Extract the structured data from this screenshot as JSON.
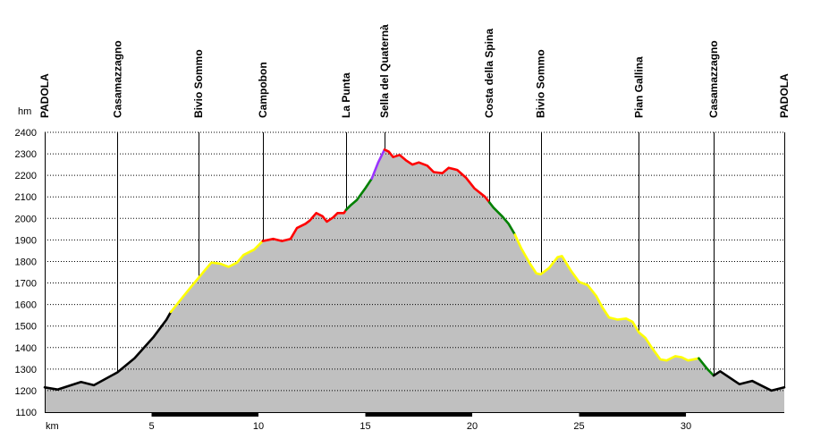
{
  "chart_data": {
    "type": "area",
    "xlabel": "km",
    "ylabel": "hm",
    "xlim": [
      0,
      34.6
    ],
    "ylim": [
      1100,
      2400
    ],
    "x_ticks": [
      5,
      10,
      15,
      20,
      25,
      30
    ],
    "y_ticks": [
      1100,
      1200,
      1300,
      1400,
      1500,
      1600,
      1700,
      1800,
      1900,
      2000,
      2100,
      2200,
      2300,
      2400
    ],
    "grid": "horizontal",
    "waypoints": [
      {
        "label": "PADOLA",
        "x": 0.0
      },
      {
        "label": "Casamazzagno",
        "x": 3.4
      },
      {
        "label": "Bivio Sommo",
        "x": 7.2
      },
      {
        "label": "Campobon",
        "x": 10.2
      },
      {
        "label": "La Punta",
        "x": 14.1
      },
      {
        "label": "Sella del Quaternà",
        "x": 15.9
      },
      {
        "label": "Costa della Spina",
        "x": 20.8
      },
      {
        "label": "Bivio Sommo",
        "x": 23.2
      },
      {
        "label": "Pian Gallina",
        "x": 27.8
      },
      {
        "label": "Casamazzagno",
        "x": 31.3
      },
      {
        "label": "PADOLA",
        "x": 34.6
      }
    ],
    "profile": [
      [
        0.0,
        1215
      ],
      [
        0.6,
        1205
      ],
      [
        1.7,
        1240
      ],
      [
        2.3,
        1225
      ],
      [
        3.4,
        1285
      ],
      [
        4.2,
        1350
      ],
      [
        5.1,
        1450
      ],
      [
        5.7,
        1530
      ],
      [
        5.9,
        1565
      ],
      [
        6.5,
        1640
      ],
      [
        7.0,
        1700
      ],
      [
        7.5,
        1760
      ],
      [
        7.8,
        1795
      ],
      [
        8.2,
        1790
      ],
      [
        8.6,
        1775
      ],
      [
        9.0,
        1795
      ],
      [
        9.3,
        1830
      ],
      [
        9.8,
        1855
      ],
      [
        10.2,
        1895
      ],
      [
        10.7,
        1905
      ],
      [
        11.1,
        1895
      ],
      [
        11.5,
        1905
      ],
      [
        11.8,
        1955
      ],
      [
        12.2,
        1975
      ],
      [
        12.4,
        1990
      ],
      [
        12.7,
        2025
      ],
      [
        13.0,
        2010
      ],
      [
        13.2,
        1985
      ],
      [
        13.5,
        2005
      ],
      [
        13.7,
        2025
      ],
      [
        14.0,
        2025
      ],
      [
        14.1,
        2040
      ],
      [
        14.3,
        2060
      ],
      [
        14.6,
        2085
      ],
      [
        15.0,
        2140
      ],
      [
        15.3,
        2185
      ],
      [
        15.6,
        2260
      ],
      [
        15.9,
        2320
      ],
      [
        16.1,
        2310
      ],
      [
        16.3,
        2285
      ],
      [
        16.6,
        2295
      ],
      [
        16.9,
        2270
      ],
      [
        17.2,
        2250
      ],
      [
        17.5,
        2260
      ],
      [
        17.9,
        2245
      ],
      [
        18.2,
        2215
      ],
      [
        18.6,
        2210
      ],
      [
        18.9,
        2235
      ],
      [
        19.3,
        2225
      ],
      [
        19.7,
        2190
      ],
      [
        20.1,
        2140
      ],
      [
        20.6,
        2100
      ],
      [
        21.0,
        2050
      ],
      [
        21.4,
        2010
      ],
      [
        21.7,
        1975
      ],
      [
        22.0,
        1925
      ],
      [
        22.3,
        1860
      ],
      [
        22.7,
        1790
      ],
      [
        23.0,
        1745
      ],
      [
        23.2,
        1740
      ],
      [
        23.6,
        1770
      ],
      [
        24.0,
        1820
      ],
      [
        24.2,
        1825
      ],
      [
        24.6,
        1760
      ],
      [
        25.0,
        1705
      ],
      [
        25.4,
        1690
      ],
      [
        25.8,
        1640
      ],
      [
        26.1,
        1585
      ],
      [
        26.4,
        1540
      ],
      [
        26.8,
        1530
      ],
      [
        27.2,
        1535
      ],
      [
        27.5,
        1520
      ],
      [
        27.8,
        1470
      ],
      [
        28.1,
        1445
      ],
      [
        28.4,
        1400
      ],
      [
        28.8,
        1345
      ],
      [
        29.1,
        1340
      ],
      [
        29.5,
        1360
      ],
      [
        29.8,
        1355
      ],
      [
        30.1,
        1340
      ],
      [
        30.6,
        1350
      ],
      [
        31.0,
        1300
      ],
      [
        31.3,
        1270
      ],
      [
        31.6,
        1290
      ],
      [
        32.5,
        1230
      ],
      [
        33.1,
        1245
      ],
      [
        33.5,
        1225
      ],
      [
        34.0,
        1200
      ],
      [
        34.6,
        1215
      ]
    ],
    "segments": [
      {
        "from": 0.0,
        "to": 5.9,
        "color": "#000000"
      },
      {
        "from": 5.9,
        "to": 10.2,
        "color": "#ffff00"
      },
      {
        "from": 10.2,
        "to": 14.1,
        "color": "#ff0000"
      },
      {
        "from": 14.1,
        "to": 15.3,
        "color": "#008000"
      },
      {
        "from": 15.3,
        "to": 15.9,
        "color": "#9933ff"
      },
      {
        "from": 15.9,
        "to": 20.8,
        "color": "#ff0000"
      },
      {
        "from": 20.8,
        "to": 22.0,
        "color": "#008000"
      },
      {
        "from": 22.0,
        "to": 30.6,
        "color": "#ffff00"
      },
      {
        "from": 30.6,
        "to": 31.3,
        "color": "#008000"
      },
      {
        "from": 31.3,
        "to": 34.6,
        "color": "#000000"
      }
    ],
    "colors": {
      "fill": "#c0c0c0",
      "grid": "#000000",
      "waypoint_line": "#000000"
    }
  }
}
